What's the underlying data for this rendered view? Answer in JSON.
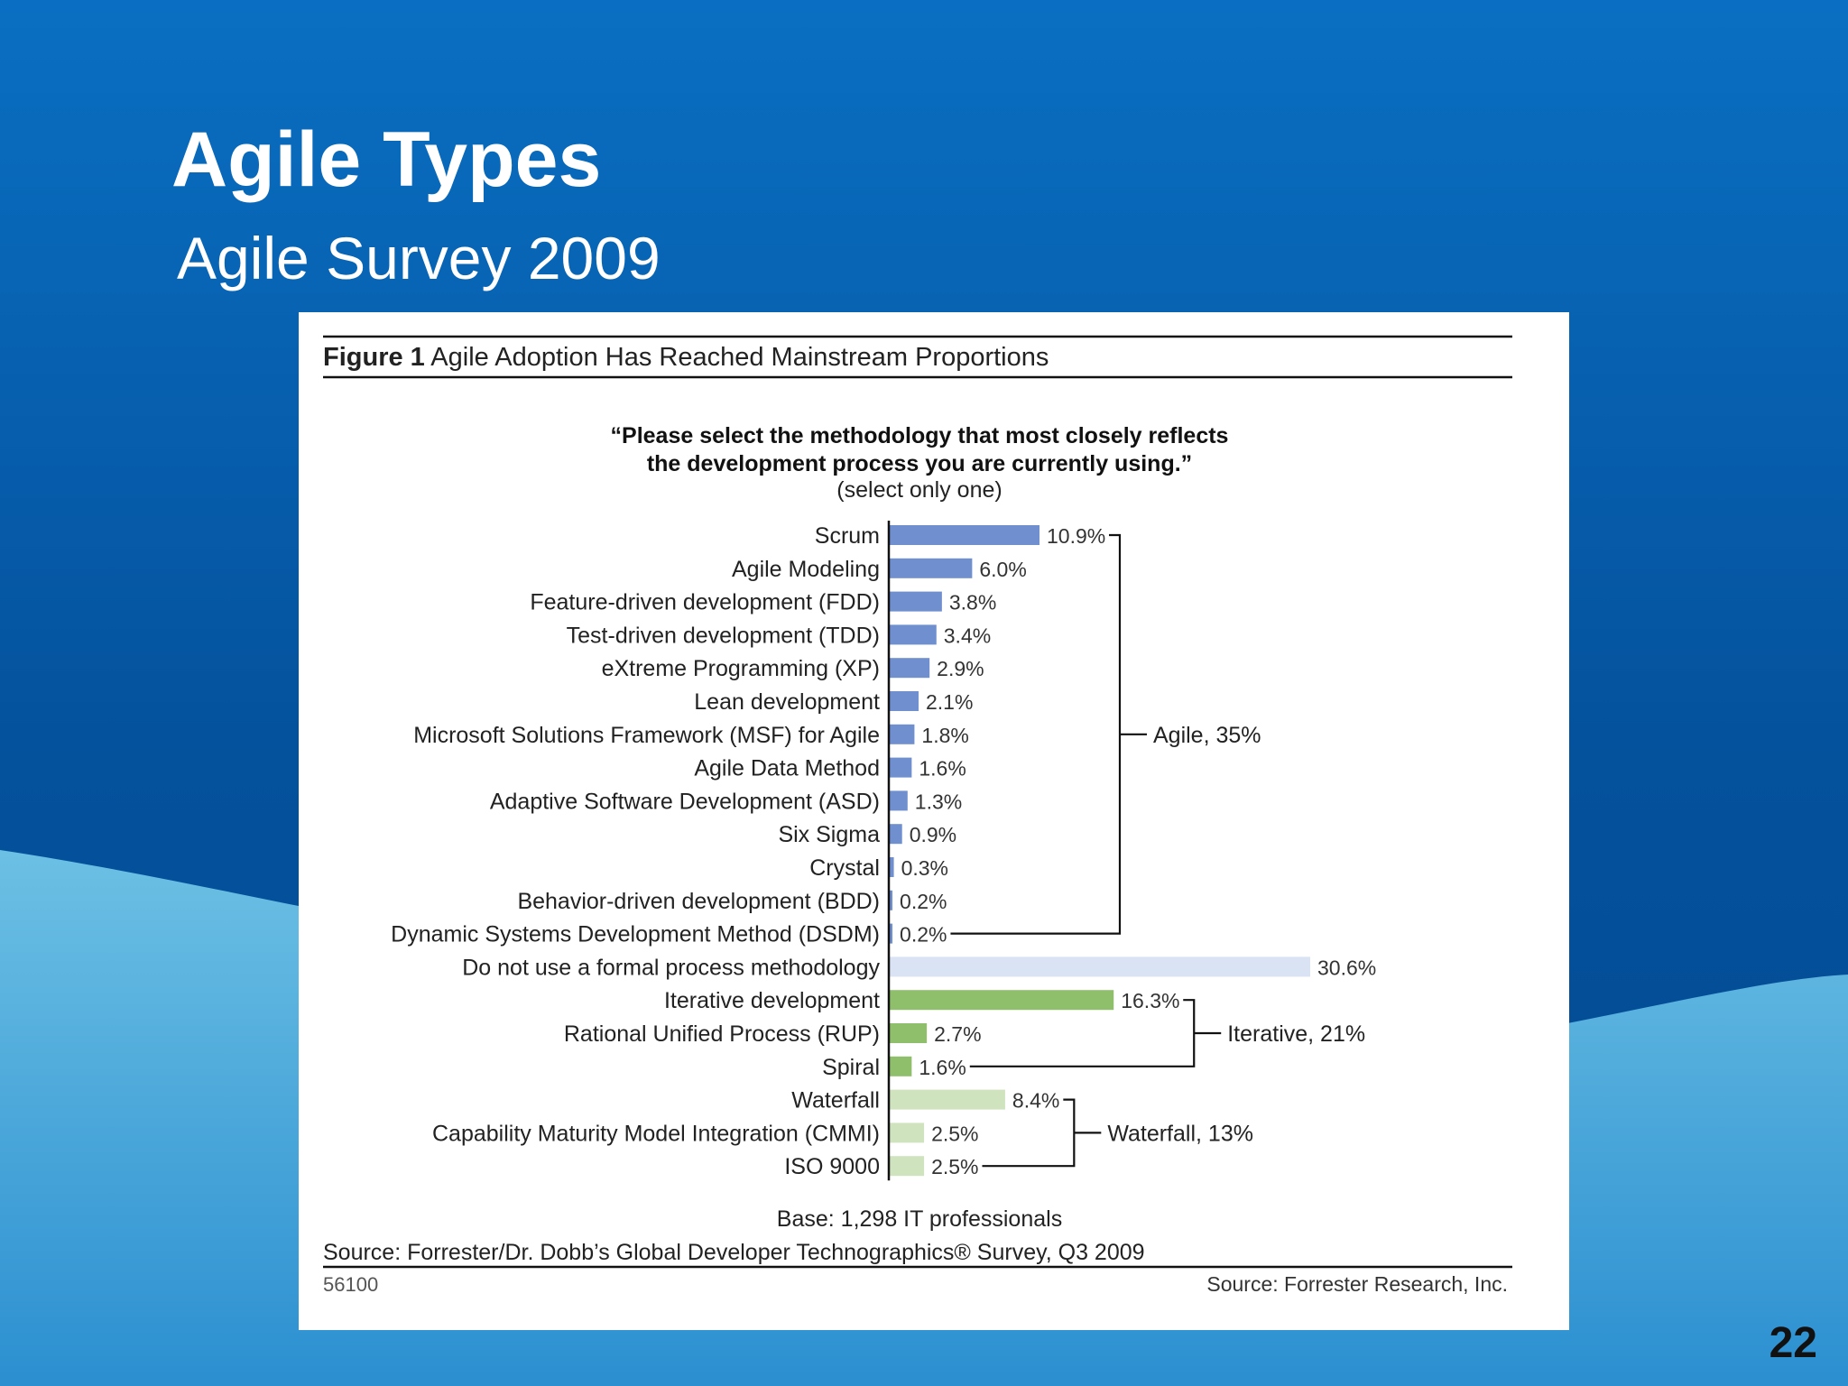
{
  "slide": {
    "title": "Agile Types",
    "subtitle": "Agile Survey 2009",
    "page_number": "22"
  },
  "colors": {
    "background_top": "#0a6fc2",
    "background_mid": "#04519c",
    "wave_light": "#5fb6df",
    "agile_bar": "#6f8fcf",
    "none_bar": "#d9e3f3",
    "iterative_bar": "#8fbf6a",
    "waterfall_bar": "#cfe3bf"
  },
  "figure": {
    "label": "Figure 1",
    "title": "Agile Adoption Has Reached Mainstream Proportions",
    "question_line1": "“Please select the methodology that most closely reflects",
    "question_line2": "the development process you are currently using.”",
    "question_note": "(select only one)",
    "base": "Base: 1,298 IT professionals",
    "source": "Source: Forrester/Dr. Dobb’s Global Developer Technographics® Survey, Q3 2009",
    "doc_id": "56100",
    "credit": "Source: Forrester Research, Inc."
  },
  "chart_data": {
    "type": "bar",
    "orientation": "horizontal",
    "categories": [
      "Scrum",
      "Agile Modeling",
      "Feature-driven development (FDD)",
      "Test-driven development (TDD)",
      "eXtreme Programming (XP)",
      "Lean development",
      "Microsoft Solutions Framework (MSF) for Agile",
      "Agile Data Method",
      "Adaptive Software Development (ASD)",
      "Six Sigma",
      "Crystal",
      "Behavior-driven development (BDD)",
      "Dynamic Systems Development Method (DSDM)",
      "Do not use a formal process methodology",
      "Iterative development",
      "Rational Unified Process (RUP)",
      "Spiral",
      "Waterfall",
      "Capability Maturity Model Integration (CMMI)",
      "ISO 9000"
    ],
    "values": [
      10.9,
      6.0,
      3.8,
      3.4,
      2.9,
      2.1,
      1.8,
      1.6,
      1.3,
      0.9,
      0.3,
      0.2,
      0.2,
      30.6,
      16.3,
      2.7,
      1.6,
      8.4,
      2.5,
      2.5
    ],
    "value_labels": [
      "10.9%",
      "6.0%",
      "3.8%",
      "3.4%",
      "2.9%",
      "2.1%",
      "1.8%",
      "1.6%",
      "1.3%",
      "0.9%",
      "0.3%",
      "0.2%",
      "0.2%",
      "30.6%",
      "16.3%",
      "2.7%",
      "1.6%",
      "8.4%",
      "2.5%",
      "2.5%"
    ],
    "groups_per_bar": [
      "agile",
      "agile",
      "agile",
      "agile",
      "agile",
      "agile",
      "agile",
      "agile",
      "agile",
      "agile",
      "agile",
      "agile",
      "agile",
      "none",
      "iterative",
      "iterative",
      "iterative",
      "waterfall",
      "waterfall",
      "waterfall"
    ],
    "brackets": [
      {
        "label": "Agile, 35%",
        "from": 0,
        "to": 12
      },
      {
        "label": "Iterative, 21%",
        "from": 14,
        "to": 16
      },
      {
        "label": "Waterfall, 13%",
        "from": 17,
        "to": 19
      }
    ],
    "xlim": [
      0,
      30.6
    ],
    "grid": false,
    "legend": "none"
  }
}
